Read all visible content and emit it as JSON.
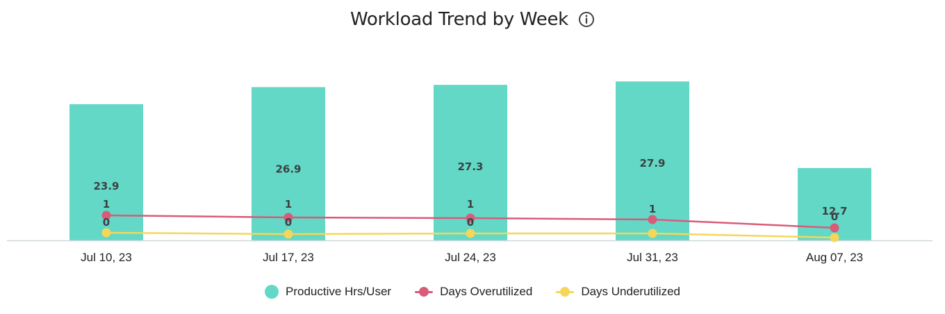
{
  "title": "Workload Trend by Week",
  "icons": {
    "info": "info-circle-icon"
  },
  "colors": {
    "bars": "#63d8c6",
    "overutilized": "#d85b7a",
    "underutilized": "#f4d75a",
    "axis": "#cfd8dc"
  },
  "chart_data": {
    "type": "bar",
    "categories": [
      "Jul 10, 23",
      "Jul 17, 23",
      "Jul 24, 23",
      "Jul 31, 23",
      "Aug 07, 23"
    ],
    "series": [
      {
        "name": "Productive Hrs/User",
        "type": "bar",
        "values": [
          23.9,
          26.9,
          27.3,
          27.9,
          12.7
        ],
        "labels": [
          "23.9",
          "26.9",
          "27.3",
          "27.9",
          "12.7"
        ]
      },
      {
        "name": "Days Overutilized",
        "type": "line",
        "values": [
          1,
          1,
          1,
          1,
          0
        ],
        "labels": [
          "1",
          "1",
          "1",
          "1",
          "0"
        ]
      },
      {
        "name": "Days Underutilized",
        "type": "line",
        "values": [
          0,
          0,
          0,
          0,
          0
        ],
        "labels": [
          "0",
          "0",
          "0",
          "",
          ""
        ]
      }
    ],
    "legend_position": "bottom",
    "grid": false
  }
}
